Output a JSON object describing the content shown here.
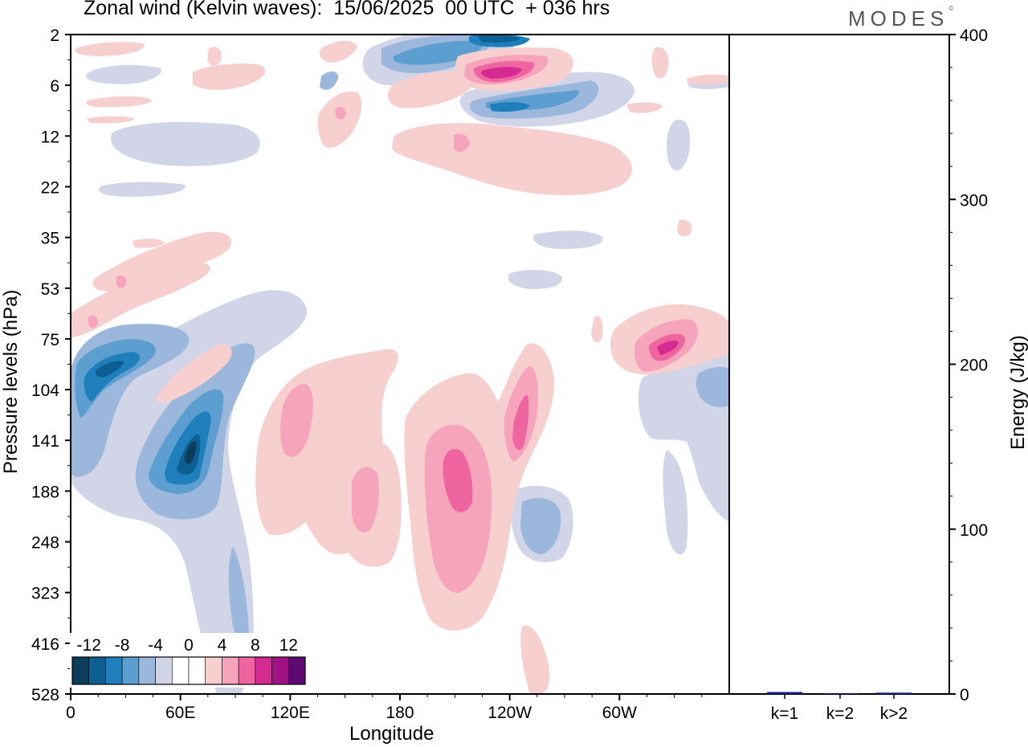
{
  "title": "Zonal wind (Kelvin waves):  15/06/2025  00 UTC  + 036 hrs",
  "brand": "MODES",
  "chart_data": [
    {
      "type": "heatmap",
      "xlabel": "Longitude",
      "ylabel": "Pressure levels (hPa)",
      "x_ticks": [
        "0",
        "60E",
        "120E",
        "180",
        "120W",
        "60W"
      ],
      "y_ticks": [
        "2",
        "6",
        "12",
        "22",
        "35",
        "53",
        "75",
        "104",
        "141",
        "188",
        "248",
        "323",
        "416",
        "528"
      ],
      "colorbar_labels": [
        "-12",
        "-8",
        "-4",
        "0",
        "4",
        "8",
        "12"
      ],
      "colorbar_colors": [
        "#0c3d5a",
        "#0d5f93",
        "#1e7fbb",
        "#5b9ecf",
        "#9bb8dc",
        "#d2d5e8",
        "#ffffff",
        "#ffffff",
        "#f8cfcf",
        "#f6a3bc",
        "#ee65a0",
        "#d42a92",
        "#a01283",
        "#5c0a6f"
      ],
      "features": [
        {
          "sign": "negative",
          "lon_deg": 64,
          "level_hPa": 141,
          "peak": -12
        },
        {
          "sign": "negative",
          "lon_deg": 18,
          "level_hPa": 90,
          "peak": -10
        },
        {
          "sign": "negative",
          "lon_deg": 240,
          "level_hPa": 2,
          "peak": -10
        },
        {
          "sign": "negative",
          "lon_deg": 250,
          "level_hPa": 7,
          "peak": -8
        },
        {
          "sign": "negative",
          "lon_deg": 258,
          "level_hPa": 230,
          "peak": -5
        },
        {
          "sign": "positive",
          "lon_deg": 243,
          "level_hPa": 5,
          "peak": 10
        },
        {
          "sign": "positive",
          "lon_deg": 212,
          "level_hPa": 175,
          "peak": 8
        },
        {
          "sign": "positive",
          "lon_deg": 249,
          "level_hPa": 130,
          "peak": 7
        },
        {
          "sign": "positive",
          "lon_deg": 330,
          "level_hPa": 80,
          "peak": 8
        },
        {
          "sign": "positive",
          "lon_deg": 123,
          "level_hPa": 125,
          "peak": 5
        },
        {
          "sign": "positive",
          "lon_deg": 161,
          "level_hPa": 180,
          "peak": 5
        }
      ]
    },
    {
      "type": "bar",
      "categories": [
        "k=1",
        "k=2",
        "k>2"
      ],
      "values": [
        1.2,
        0.3,
        0.8
      ],
      "ylabel": "Energy (J/kg)",
      "ylim": [
        0,
        400
      ],
      "y_ticks": [
        "0",
        "100",
        "200",
        "300",
        "400"
      ],
      "bar_color": "#1a1a8c"
    }
  ]
}
